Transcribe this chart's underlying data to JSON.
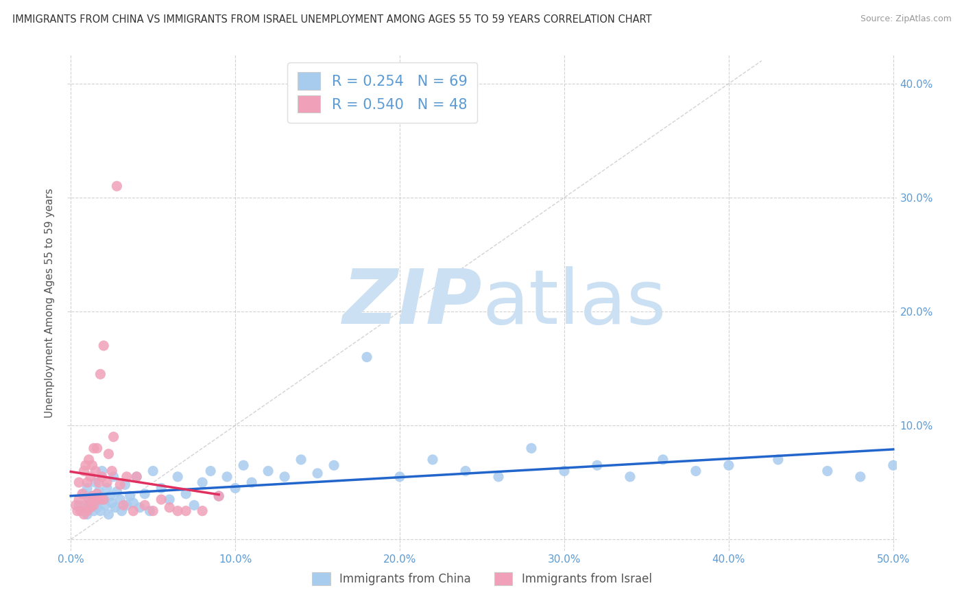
{
  "title": "IMMIGRANTS FROM CHINA VS IMMIGRANTS FROM ISRAEL UNEMPLOYMENT AMONG AGES 55 TO 59 YEARS CORRELATION CHART",
  "source": "Source: ZipAtlas.com",
  "ylabel": "Unemployment Among Ages 55 to 59 years",
  "xlim": [
    -0.002,
    0.502
  ],
  "ylim": [
    -0.01,
    0.425
  ],
  "xticks": [
    0.0,
    0.1,
    0.2,
    0.3,
    0.4,
    0.5
  ],
  "yticks": [
    0.0,
    0.1,
    0.2,
    0.3,
    0.4
  ],
  "xticklabels": [
    "0.0%",
    "10.0%",
    "20.0%",
    "30.0%",
    "40.0%",
    "50.0%"
  ],
  "yticklabels_right": [
    "",
    "10.0%",
    "20.0%",
    "30.0%",
    "40.0%"
  ],
  "china_color": "#a8ccee",
  "israel_color": "#f0a0b8",
  "china_line_color": "#2266cc",
  "israel_line_color": "#e03060",
  "israel_dashed_color": "#d0a0b0",
  "R_china": 0.254,
  "N_china": 69,
  "R_israel": 0.54,
  "N_israel": 48,
  "grid_color": "#cccccc",
  "background_color": "#ffffff",
  "watermark_zip": "ZIP",
  "watermark_atlas": "atlas",
  "watermark_color": "#cce0f4",
  "legend_label_china": "Immigrants from China",
  "legend_label_israel": "Immigrants from Israel",
  "china_scatter_x": [
    0.005,
    0.007,
    0.008,
    0.009,
    0.01,
    0.01,
    0.011,
    0.012,
    0.013,
    0.014,
    0.015,
    0.015,
    0.016,
    0.017,
    0.018,
    0.019,
    0.02,
    0.021,
    0.022,
    0.023,
    0.024,
    0.025,
    0.026,
    0.027,
    0.028,
    0.03,
    0.031,
    0.033,
    0.034,
    0.036,
    0.038,
    0.04,
    0.042,
    0.045,
    0.048,
    0.05,
    0.055,
    0.06,
    0.065,
    0.07,
    0.075,
    0.08,
    0.085,
    0.09,
    0.095,
    0.1,
    0.105,
    0.11,
    0.12,
    0.13,
    0.14,
    0.15,
    0.16,
    0.18,
    0.2,
    0.22,
    0.24,
    0.26,
    0.28,
    0.3,
    0.32,
    0.34,
    0.36,
    0.38,
    0.4,
    0.43,
    0.46,
    0.48,
    0.5
  ],
  "china_scatter_y": [
    0.03,
    0.025,
    0.04,
    0.028,
    0.022,
    0.045,
    0.035,
    0.03,
    0.038,
    0.025,
    0.032,
    0.05,
    0.028,
    0.042,
    0.025,
    0.06,
    0.035,
    0.03,
    0.045,
    0.022,
    0.038,
    0.032,
    0.055,
    0.028,
    0.042,
    0.035,
    0.025,
    0.048,
    0.03,
    0.038,
    0.032,
    0.055,
    0.028,
    0.04,
    0.025,
    0.06,
    0.045,
    0.035,
    0.055,
    0.04,
    0.03,
    0.05,
    0.06,
    0.038,
    0.055,
    0.045,
    0.065,
    0.05,
    0.06,
    0.055,
    0.07,
    0.058,
    0.065,
    0.16,
    0.055,
    0.07,
    0.06,
    0.055,
    0.08,
    0.06,
    0.065,
    0.055,
    0.07,
    0.06,
    0.065,
    0.07,
    0.06,
    0.055,
    0.065
  ],
  "israel_scatter_x": [
    0.003,
    0.004,
    0.005,
    0.005,
    0.006,
    0.007,
    0.008,
    0.008,
    0.009,
    0.009,
    0.01,
    0.01,
    0.011,
    0.011,
    0.012,
    0.012,
    0.013,
    0.013,
    0.014,
    0.014,
    0.015,
    0.015,
    0.016,
    0.016,
    0.017,
    0.018,
    0.018,
    0.019,
    0.02,
    0.02,
    0.022,
    0.023,
    0.025,
    0.026,
    0.028,
    0.03,
    0.032,
    0.034,
    0.038,
    0.04,
    0.045,
    0.05,
    0.055,
    0.06,
    0.065,
    0.07,
    0.08,
    0.09
  ],
  "israel_scatter_y": [
    0.03,
    0.025,
    0.035,
    0.05,
    0.025,
    0.04,
    0.022,
    0.06,
    0.03,
    0.065,
    0.025,
    0.05,
    0.035,
    0.07,
    0.028,
    0.055,
    0.038,
    0.065,
    0.03,
    0.08,
    0.035,
    0.06,
    0.04,
    0.08,
    0.05,
    0.145,
    0.035,
    0.055,
    0.035,
    0.17,
    0.05,
    0.075,
    0.06,
    0.09,
    0.31,
    0.048,
    0.03,
    0.055,
    0.025,
    0.055,
    0.03,
    0.025,
    0.035,
    0.028,
    0.025,
    0.025,
    0.025,
    0.038
  ]
}
